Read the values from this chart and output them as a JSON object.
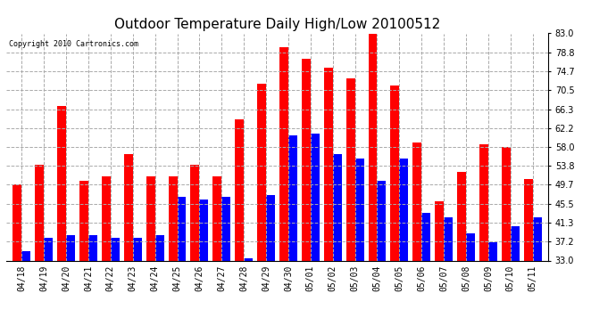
{
  "title": "Outdoor Temperature Daily High/Low 20100512",
  "copyright": "Copyright 2010 Cartronics.com",
  "dates": [
    "04/18",
    "04/19",
    "04/20",
    "04/21",
    "04/22",
    "04/23",
    "04/24",
    "04/25",
    "04/26",
    "04/27",
    "04/28",
    "04/29",
    "04/30",
    "05/01",
    "05/02",
    "05/03",
    "05/04",
    "05/05",
    "05/06",
    "05/07",
    "05/08",
    "05/09",
    "05/10",
    "05/11"
  ],
  "highs": [
    49.7,
    54.0,
    67.0,
    50.5,
    51.5,
    56.5,
    51.5,
    51.5,
    54.0,
    51.5,
    64.0,
    72.0,
    80.0,
    77.5,
    75.5,
    73.0,
    83.0,
    71.5,
    59.0,
    46.0,
    52.5,
    58.5,
    58.0,
    51.0
  ],
  "lows": [
    35.0,
    38.0,
    38.5,
    38.5,
    38.0,
    38.0,
    38.5,
    47.0,
    46.5,
    47.0,
    33.5,
    47.5,
    60.5,
    61.0,
    56.5,
    55.5,
    50.5,
    55.5,
    43.5,
    42.5,
    39.0,
    37.0,
    40.5,
    42.5
  ],
  "high_color": "#ff0000",
  "low_color": "#0000ff",
  "background_color": "#ffffff",
  "plot_background": "#ffffff",
  "grid_color": "#aaaaaa",
  "yticks": [
    33.0,
    37.2,
    41.3,
    45.5,
    49.7,
    53.8,
    58.0,
    62.2,
    66.3,
    70.5,
    74.7,
    78.8,
    83.0
  ],
  "ylim": [
    33.0,
    83.0
  ],
  "ymin": 33.0,
  "title_fontsize": 11,
  "tick_fontsize": 7,
  "bar_width": 0.4
}
